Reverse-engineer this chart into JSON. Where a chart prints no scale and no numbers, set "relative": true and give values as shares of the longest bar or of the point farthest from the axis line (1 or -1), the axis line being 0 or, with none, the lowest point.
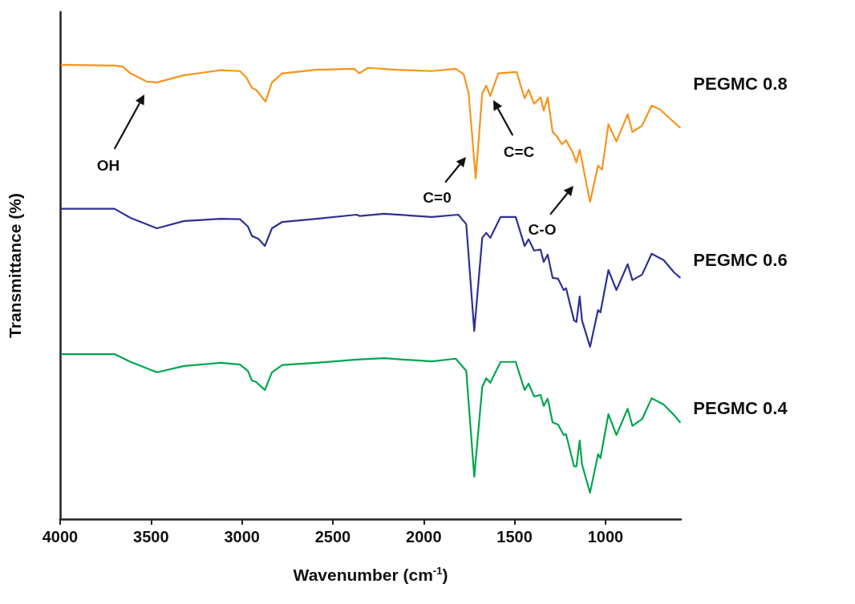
{
  "chart_data": {
    "type": "line",
    "relative": true,
    "xlabel": "Wavenumber (cm$^{-1}$)",
    "ylabel": "Transmittance (%)",
    "xlim": [
      4000,
      585
    ],
    "xticks": [
      4000,
      3500,
      3000,
      2500,
      2000,
      1500,
      1000
    ],
    "annotations": [
      "OH",
      "C=0",
      "C=C",
      "C-O"
    ],
    "series": [
      {
        "name": "PEGMC 0.8",
        "color": "#f7941d",
        "x": [
          3996,
          3701,
          3657,
          3613,
          3525,
          3468,
          3318,
          3116,
          3011,
          2976,
          2945,
          2923,
          2870,
          2835,
          2778,
          2589,
          2382,
          2356,
          2307,
          2149,
          1955,
          1824,
          1780,
          1753,
          1714,
          1678,
          1656,
          1634,
          1590,
          1489,
          1445,
          1423,
          1393,
          1357,
          1340,
          1318,
          1291,
          1269,
          1239,
          1217,
          1182,
          1160,
          1142,
          1085,
          1041,
          1019,
          984,
          940,
          878,
          852,
          799,
          746,
          698,
          636,
          588
        ],
        "values": [
          1.0,
          0.998,
          0.996,
          0.981,
          0.963,
          0.961,
          0.977,
          0.988,
          0.986,
          0.972,
          0.949,
          0.945,
          0.919,
          0.961,
          0.981,
          0.989,
          0.991,
          0.981,
          0.993,
          0.989,
          0.986,
          0.991,
          0.979,
          0.937,
          0.75,
          0.937,
          0.954,
          0.931,
          0.981,
          0.984,
          0.926,
          0.945,
          0.914,
          0.928,
          0.899,
          0.928,
          0.852,
          0.843,
          0.825,
          0.834,
          0.808,
          0.785,
          0.813,
          0.698,
          0.778,
          0.769,
          0.869,
          0.831,
          0.891,
          0.852,
          0.866,
          0.91,
          0.901,
          0.878,
          0.861
        ]
      },
      {
        "name": "PEGMC 0.6",
        "color": "#2e3192",
        "x": [
          3996,
          3701,
          3613,
          3468,
          3318,
          3116,
          3011,
          2967,
          2945,
          2910,
          2874,
          2835,
          2778,
          2589,
          2369,
          2351,
          2219,
          1955,
          1810,
          1766,
          1722,
          1678,
          1656,
          1634,
          1577,
          1494,
          1445,
          1423,
          1393,
          1357,
          1340,
          1318,
          1291,
          1261,
          1230,
          1217,
          1173,
          1160,
          1142,
          1129,
          1085,
          1041,
          1028,
          984,
          940,
          878,
          852,
          799,
          746,
          680,
          623,
          588
        ],
        "values": [
          0.683,
          0.683,
          0.663,
          0.64,
          0.656,
          0.661,
          0.66,
          0.644,
          0.623,
          0.617,
          0.601,
          0.64,
          0.654,
          0.661,
          0.67,
          0.667,
          0.672,
          0.665,
          0.67,
          0.649,
          0.414,
          0.619,
          0.63,
          0.619,
          0.665,
          0.665,
          0.601,
          0.616,
          0.591,
          0.593,
          0.566,
          0.582,
          0.531,
          0.529,
          0.504,
          0.508,
          0.437,
          0.434,
          0.49,
          0.437,
          0.379,
          0.46,
          0.455,
          0.548,
          0.504,
          0.561,
          0.526,
          0.538,
          0.584,
          0.57,
          0.543,
          0.531
        ]
      },
      {
        "name": "PEGMC 0.4",
        "color": "#00a651",
        "x": [
          3996,
          3701,
          3613,
          3468,
          3318,
          3116,
          3011,
          2967,
          2945,
          2923,
          2874,
          2835,
          2778,
          2589,
          2369,
          2219,
          1955,
          1824,
          1766,
          1722,
          1678,
          1656,
          1634,
          1577,
          1494,
          1445,
          1423,
          1393,
          1357,
          1340,
          1318,
          1291,
          1261,
          1230,
          1217,
          1173,
          1160,
          1142,
          1129,
          1085,
          1041,
          1028,
          984,
          940,
          878,
          852,
          799,
          746,
          680,
          623,
          588
        ],
        "values": [
          0.363,
          0.363,
          0.346,
          0.323,
          0.337,
          0.344,
          0.34,
          0.326,
          0.305,
          0.302,
          0.284,
          0.323,
          0.339,
          0.344,
          0.351,
          0.354,
          0.347,
          0.353,
          0.326,
          0.093,
          0.291,
          0.31,
          0.3,
          0.346,
          0.346,
          0.284,
          0.298,
          0.27,
          0.273,
          0.249,
          0.265,
          0.213,
          0.208,
          0.185,
          0.187,
          0.116,
          0.116,
          0.173,
          0.12,
          0.058,
          0.143,
          0.134,
          0.231,
          0.185,
          0.243,
          0.205,
          0.22,
          0.266,
          0.252,
          0.229,
          0.212
        ]
      }
    ]
  }
}
